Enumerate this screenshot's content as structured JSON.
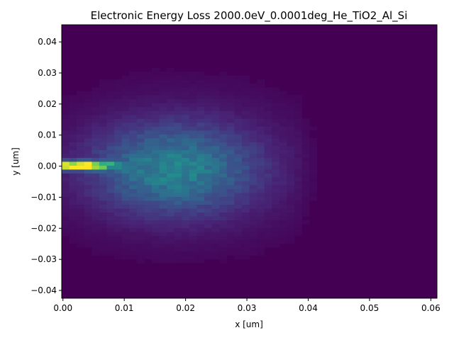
{
  "chart_data": {
    "type": "heatmap",
    "title": "Electronic Energy Loss 2000.0eV_0.0001deg_He_TiO2_Al_Si",
    "xlabel": "x [um]",
    "ylabel": "y [um]",
    "xlim": [
      -0.0002,
      0.061
    ],
    "ylim": [
      -0.0425,
      0.0455
    ],
    "xticks": [
      0.0,
      0.01,
      0.02,
      0.03,
      0.04,
      0.05,
      0.06
    ],
    "xtick_labels": [
      "0.00",
      "0.01",
      "0.02",
      "0.03",
      "0.04",
      "0.05",
      "0.06"
    ],
    "yticks": [
      -0.04,
      -0.03,
      -0.02,
      -0.01,
      0.0,
      0.01,
      0.02,
      0.03,
      0.04
    ],
    "ytick_labels": [
      "−0.04",
      "−0.03",
      "−0.02",
      "−0.01",
      "0.00",
      "0.01",
      "0.02",
      "0.03",
      "0.04"
    ],
    "colormap": "viridis",
    "grid": false,
    "bins": {
      "x_edges_range": [
        -0.0002,
        0.061
      ],
      "y_edges_range": [
        -0.0425,
        0.0455
      ],
      "nx": 50,
      "ny": 70
    },
    "density": {
      "description_free": true,
      "peak": {
        "x": 0.004,
        "y": 0.0,
        "relative_value": 1.0
      },
      "core": {
        "x_center": 0.018,
        "y_center": -0.001,
        "x_sigma": 0.012,
        "y_sigma": 0.013,
        "relative_value": 0.45
      },
      "halo": {
        "x_center": 0.02,
        "y_center": 0.0,
        "x_sigma": 0.018,
        "y_sigma": 0.02,
        "relative_value": 0.12
      },
      "x_cutoff_soft": 0.038
    },
    "colors": {
      "background": "#440154",
      "axis": "#000000"
    }
  }
}
